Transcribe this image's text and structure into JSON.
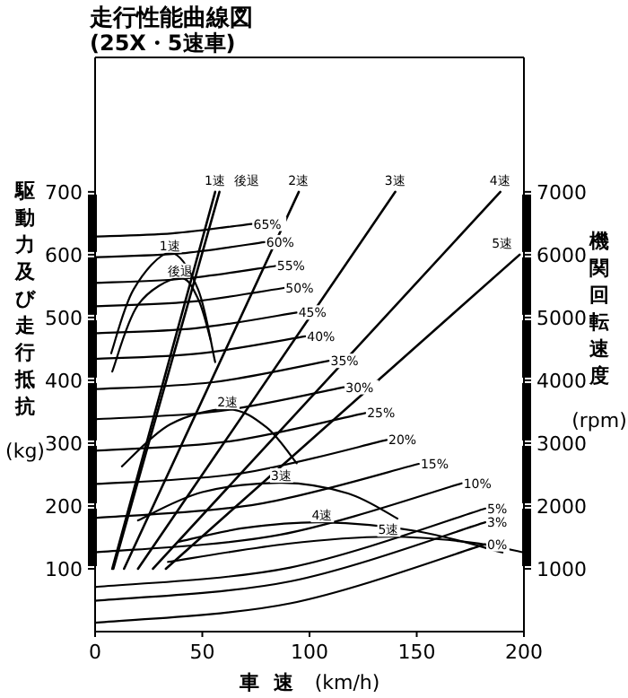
{
  "chart_data": {
    "type": "line",
    "title": "走行性能曲線図",
    "subtitle": "(25X・5速車)",
    "xlabel": "車速 (km/h)",
    "ylabel": "駆動力及び走行抵抗 (kg)",
    "y2label": "機関回転速度 (rpm)",
    "xlim": [
      0,
      200
    ],
    "xticks": [
      0,
      50,
      100,
      150,
      200
    ],
    "ylim": [
      0,
      914
    ],
    "yticks": [
      100,
      200,
      300,
      400,
      500,
      600,
      700
    ],
    "y2lim": [
      0,
      9140
    ],
    "y2ticks": [
      1000,
      2000,
      3000,
      4000,
      5000,
      6000,
      7000
    ],
    "grid": false,
    "marker": "none",
    "line_style": "solid",
    "series": [
      {
        "name": "65%",
        "color": "#000000",
        "x": [
          0,
          36,
          73
        ],
        "values": [
          629,
          634,
          649
        ]
      },
      {
        "name": "60%",
        "color": "#000000",
        "x": [
          0,
          40,
          79
        ],
        "values": [
          596,
          602,
          620
        ]
      },
      {
        "name": "55%",
        "color": "#000000",
        "x": [
          0,
          42,
          84
        ],
        "values": [
          555,
          562,
          582
        ]
      },
      {
        "name": "50%",
        "color": "#000000",
        "x": [
          0,
          44,
          88
        ],
        "values": [
          518,
          525,
          547
        ]
      },
      {
        "name": "45%",
        "color": "#000000",
        "x": [
          0,
          47,
          94
        ],
        "values": [
          475,
          483,
          508
        ]
      },
      {
        "name": "40%",
        "color": "#000000",
        "x": [
          0,
          49,
          98
        ],
        "values": [
          434,
          443,
          470
        ]
      },
      {
        "name": "35%",
        "color": "#000000",
        "x": [
          0,
          55,
          109
        ],
        "values": [
          386,
          397,
          431
        ]
      },
      {
        "name": "30%",
        "color": "#000000",
        "x": [
          0,
          58,
          116
        ],
        "values": [
          338,
          351,
          389
        ]
      },
      {
        "name": "25%",
        "color": "#000000",
        "x": [
          0,
          63,
          126
        ],
        "values": [
          288,
          303,
          348
        ]
      },
      {
        "name": "20%",
        "color": "#000000",
        "x": [
          0,
          68,
          136
        ],
        "values": [
          235,
          252,
          305
        ]
      },
      {
        "name": "15%",
        "color": "#000000",
        "x": [
          0,
          76,
          151
        ],
        "values": [
          181,
          203,
          267
        ]
      },
      {
        "name": "10%",
        "color": "#000000",
        "x": [
          0,
          86,
          171
        ],
        "values": [
          126,
          154,
          236
        ]
      },
      {
        "name": "5%",
        "color": "#000000",
        "x": [
          0,
          91,
          182
        ],
        "values": [
          71,
          102,
          196
        ]
      },
      {
        "name": "3%",
        "color": "#000000",
        "x": [
          0,
          91,
          182
        ],
        "values": [
          49,
          80,
          174
        ]
      },
      {
        "name": "0%",
        "color": "#000000",
        "x": [
          0,
          91,
          182
        ],
        "values": [
          14,
          45,
          139
        ]
      },
      {
        "name": "1速",
        "color": "#000000",
        "x": [
          7.5,
          18,
          35,
          48,
          56
        ],
        "values": [
          443,
          545,
          603,
          545,
          429
        ]
      },
      {
        "name": "後退",
        "color": "#000000",
        "x": [
          8,
          20,
          39,
          48,
          54
        ],
        "values": [
          414,
          520,
          563,
          530,
          463
        ]
      },
      {
        "name": "2速",
        "color": "#000000",
        "x": [
          12.5,
          35,
          62,
          80,
          94
        ],
        "values": [
          263,
          330,
          354,
          325,
          268
        ]
      },
      {
        "name": "3速",
        "color": "#000000",
        "x": [
          20,
          50,
          87,
          118,
          141
        ],
        "values": [
          177,
          222,
          237,
          220,
          180
        ]
      },
      {
        "name": "4速",
        "color": "#000000",
        "x": [
          39,
          70,
          106,
          150,
          190
        ],
        "values": [
          143,
          165,
          174,
          160,
          126
        ]
      },
      {
        "name": "5速",
        "color": "#000000",
        "x": [
          34,
          90,
          137,
          175,
          200
        ],
        "values": [
          111,
          140,
          151,
          142,
          126
        ]
      },
      {
        "name": "1速",
        "color": "#000000",
        "axis": "y2",
        "x": [
          8,
          56
        ],
        "values": [
          1000,
          7000
        ]
      },
      {
        "name": "後退",
        "color": "#000000",
        "axis": "y2",
        "x": [
          8.5,
          58
        ],
        "values": [
          1000,
          7000
        ]
      },
      {
        "name": "2速",
        "color": "#000000",
        "axis": "y2",
        "x": [
          13.5,
          95
        ],
        "values": [
          1000,
          7000
        ]
      },
      {
        "name": "3速",
        "color": "#000000",
        "axis": "y2",
        "x": [
          20,
          140
        ],
        "values": [
          1000,
          7000
        ]
      },
      {
        "name": "4速",
        "color": "#000000",
        "axis": "y2",
        "x": [
          27,
          189
        ],
        "values": [
          1000,
          7000
        ]
      },
      {
        "name": "5速",
        "color": "#000000",
        "axis": "y2",
        "x": [
          33,
          198
        ],
        "values": [
          1000,
          6000
        ]
      }
    ]
  }
}
